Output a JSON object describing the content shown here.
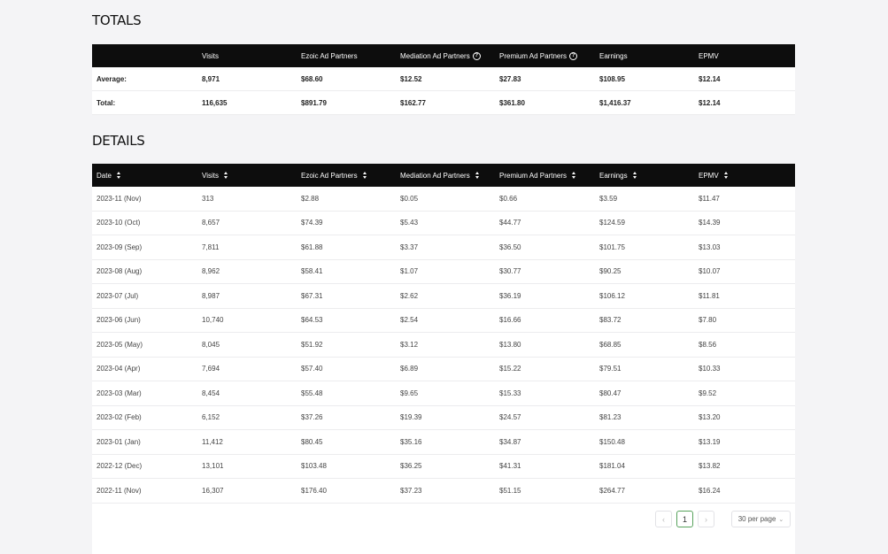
{
  "totals": {
    "title": "TOTALS",
    "columns": [
      "",
      "Visits",
      "Ezoic Ad Partners",
      "Mediation Ad Partners",
      "Premium Ad Partners",
      "Earnings",
      "EPMV"
    ],
    "help_icon": "question-circle-icon",
    "rows": [
      [
        "Average:",
        "8,971",
        "$68.60",
        "$12.52",
        "$27.83",
        "$108.95",
        "$12.14"
      ],
      [
        "Total:",
        "116,635",
        "$891.79",
        "$162.77",
        "$361.80",
        "$1,416.37",
        "$12.14"
      ]
    ]
  },
  "details": {
    "title": "DETAILS",
    "columns": [
      "Date",
      "Visits",
      "Ezoic Ad Partners",
      "Mediation Ad Partners",
      "Premium Ad Partners",
      "Earnings",
      "EPMV"
    ],
    "sort_icon": "sort-icon",
    "rows": [
      [
        "2023-11 (Nov)",
        "313",
        "$2.88",
        "$0.05",
        "$0.66",
        "$3.59",
        "$11.47"
      ],
      [
        "2023-10 (Oct)",
        "8,657",
        "$74.39",
        "$5.43",
        "$44.77",
        "$124.59",
        "$14.39"
      ],
      [
        "2023-09 (Sep)",
        "7,811",
        "$61.88",
        "$3.37",
        "$36.50",
        "$101.75",
        "$13.03"
      ],
      [
        "2023-08 (Aug)",
        "8,962",
        "$58.41",
        "$1.07",
        "$30.77",
        "$90.25",
        "$10.07"
      ],
      [
        "2023-07 (Jul)",
        "8,987",
        "$67.31",
        "$2.62",
        "$36.19",
        "$106.12",
        "$11.81"
      ],
      [
        "2023-06 (Jun)",
        "10,740",
        "$64.53",
        "$2.54",
        "$16.66",
        "$83.72",
        "$7.80"
      ],
      [
        "2023-05 (May)",
        "8,045",
        "$51.92",
        "$3.12",
        "$13.80",
        "$68.85",
        "$8.56"
      ],
      [
        "2023-04 (Apr)",
        "7,694",
        "$57.40",
        "$6.89",
        "$15.22",
        "$79.51",
        "$10.33"
      ],
      [
        "2023-03 (Mar)",
        "8,454",
        "$55.48",
        "$9.65",
        "$15.33",
        "$80.47",
        "$9.52"
      ],
      [
        "2023-02 (Feb)",
        "6,152",
        "$37.26",
        "$19.39",
        "$24.57",
        "$81.23",
        "$13.20"
      ],
      [
        "2023-01 (Jan)",
        "11,412",
        "$80.45",
        "$35.16",
        "$34.87",
        "$150.48",
        "$13.19"
      ],
      [
        "2022-12 (Dec)",
        "13,101",
        "$103.48",
        "$36.25",
        "$41.31",
        "$181.04",
        "$13.82"
      ],
      [
        "2022-11 (Nov)",
        "16,307",
        "$176.40",
        "$37.23",
        "$51.15",
        "$264.77",
        "$16.24"
      ]
    ]
  },
  "pagination": {
    "prev": "‹",
    "current_page": "1",
    "next": "›",
    "per_page": "30 per page"
  }
}
